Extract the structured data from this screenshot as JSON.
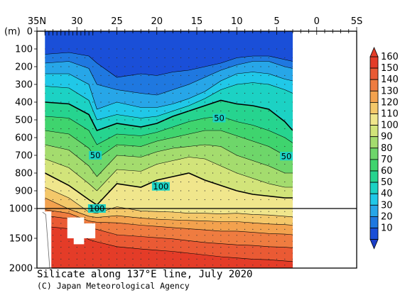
{
  "chart_data": {
    "type": "heatmap",
    "title": "Silicate along 137°E line, July 2020",
    "credit": "(C) Japan Meteorological Agency",
    "x_tick_labels": [
      "35N",
      "30",
      "25",
      "20",
      "15",
      "10",
      "5",
      "0",
      "5S"
    ],
    "x_ticks_lat": [
      35,
      30,
      25,
      20,
      15,
      10,
      5,
      0,
      -5
    ],
    "xlim_lat": [
      35,
      -5
    ],
    "depth_unit": "(m)",
    "y_tick_labels": [
      "0",
      "100",
      "200",
      "300",
      "400",
      "500",
      "600",
      "700",
      "800",
      "900",
      "1000",
      "1500",
      "2000"
    ],
    "y_ticks_depth": [
      0,
      100,
      200,
      300,
      400,
      500,
      600,
      700,
      800,
      900,
      1000,
      1500,
      2000
    ],
    "ylim_depth": [
      0,
      2000
    ],
    "axis_break_depth": 1000,
    "data_lat_range": [
      34,
      3
    ],
    "colorbar": {
      "labels": [
        "160",
        "150",
        "140",
        "130",
        "120",
        "110",
        "100",
        "90",
        "80",
        "70",
        "60",
        "50",
        "40",
        "30",
        "20",
        "10"
      ],
      "levels": [
        10,
        20,
        30,
        40,
        50,
        60,
        70,
        80,
        90,
        100,
        110,
        120,
        130,
        140,
        150,
        160
      ],
      "colors": [
        "#1a4fd8",
        "#1f78e0",
        "#27a6e8",
        "#20c8e8",
        "#1cd2c4",
        "#26d48f",
        "#3fd46e",
        "#6ed66a",
        "#a4dc6e",
        "#d2e47a",
        "#f0e68c",
        "#f4c86a",
        "#f3a24e",
        "#ef7c40",
        "#ea5a34",
        "#e43c28"
      ]
    },
    "contour_labels": [
      {
        "value": "50",
        "lat": 27.7,
        "depth": 700
      },
      {
        "value": "50",
        "lat": 12.2,
        "depth": 490
      },
      {
        "value": "50",
        "lat": 3.8,
        "depth": 705
      },
      {
        "value": "100",
        "lat": 19.5,
        "depth": 875
      },
      {
        "value": "100",
        "lat": 27.5,
        "depth": 1000
      }
    ],
    "contour_levels": [
      10,
      20,
      30,
      40,
      50,
      60,
      70,
      80,
      90,
      100,
      110,
      120,
      130,
      140,
      150
    ],
    "labeled_contours": [
      50,
      100
    ],
    "contours": {
      "lat": [
        34,
        31,
        28.5,
        27.5,
        25,
        22,
        20,
        18,
        16,
        14,
        12,
        10,
        8,
        6,
        4,
        3
      ],
      "depth": [
        [
          130,
          120,
          140,
          180,
          260,
          240,
          250,
          230,
          220,
          200,
          180,
          150,
          140,
          140,
          160,
          170
        ],
        [
          180,
          170,
          210,
          300,
          330,
          350,
          360,
          330,
          300,
          260,
          220,
          190,
          170,
          170,
          200,
          210
        ],
        [
          240,
          240,
          300,
          440,
          400,
          430,
          430,
          410,
          380,
          340,
          280,
          240,
          230,
          240,
          270,
          280
        ],
        [
          310,
          320,
          390,
          500,
          470,
          490,
          480,
          450,
          420,
          380,
          330,
          300,
          290,
          300,
          330,
          350
        ],
        [
          400,
          410,
          470,
          560,
          520,
          540,
          520,
          480,
          450,
          420,
          390,
          410,
          420,
          440,
          510,
          560
        ],
        [
          480,
          490,
          560,
          640,
          580,
          590,
          570,
          540,
          510,
          490,
          480,
          510,
          530,
          560,
          600,
          630
        ],
        [
          560,
          580,
          660,
          720,
          640,
          650,
          620,
          600,
          580,
          560,
          560,
          590,
          620,
          650,
          700,
          720
        ],
        [
          640,
          670,
          760,
          820,
          700,
          710,
          680,
          660,
          650,
          640,
          650,
          700,
          730,
          760,
          800,
          800
        ],
        [
          720,
          770,
          860,
          900,
          780,
          790,
          750,
          730,
          710,
          720,
          760,
          800,
          830,
          860,
          880,
          880
        ],
        [
          800,
          870,
          950,
          980,
          860,
          880,
          840,
          820,
          800,
          840,
          870,
          900,
          920,
          930,
          940,
          940
        ],
        [
          880,
          940,
          1060,
          1080,
          990,
          1040,
          1050,
          1060,
          1080,
          1080,
          1090,
          1080,
          1100,
          1110,
          1130,
          1140
        ],
        [
          940,
          1010,
          1130,
          1150,
          1120,
          1160,
          1180,
          1190,
          1200,
          1210,
          1220,
          1220,
          1240,
          1260,
          1270,
          1280
        ],
        [
          1020,
          1080,
          1210,
          1230,
          1240,
          1280,
          1300,
          1320,
          1340,
          1360,
          1380,
          1380,
          1400,
          1420,
          1430,
          1440
        ],
        [
          1120,
          1170,
          1320,
          1350,
          1440,
          1470,
          1490,
          1510,
          1540,
          1570,
          1590,
          1610,
          1620,
          1640,
          1650,
          1660
        ],
        [
          1300,
          1340,
          1520,
          1560,
          1640,
          1680,
          1700,
          1720,
          1750,
          1780,
          1810,
          1830,
          1850,
          1860,
          1880,
          1890
        ]
      ]
    }
  }
}
